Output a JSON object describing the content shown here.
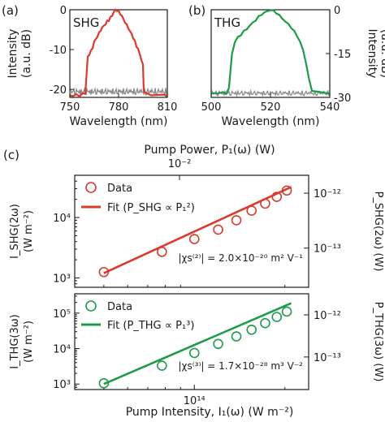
{
  "labels": {
    "panel_a": "(a)",
    "panel_b": "(b)",
    "panel_c": "(c)",
    "ylabel_left_top_1": "Intensity",
    "ylabel_left_top_2": "(a.u. dB)",
    "ylabel_right_top_1": "Intensity",
    "ylabel_right_top_2": "(a.u. dB)",
    "xlabel_a": "Wavelength (nm)",
    "xlabel_b": "Wavelength (nm)",
    "top_axis_title": "Pump Power, P₁(ω) (W)",
    "top_axis_tick": "10⁻²",
    "bottom_axis_title": "Pump Intensity, I₁(ω) (W m⁻²)",
    "ylabel_c1_1": "I_SHG(2ω)",
    "ylabel_c1_2": "(W m⁻²)",
    "ylabel_c2_1": "I_THG(3ω)",
    "ylabel_c2_2": "(W m⁻²)",
    "ylabel_c1_right": "P_SHG(2ω) (W)",
    "ylabel_c2_right": "P_THG(3ω) (W)",
    "legend_data": "Data",
    "legend_fit_shg": "Fit (P_SHG ∝ P₁²)",
    "legend_fit_thg": "Fit (P_THG ∝ P₁³)",
    "annot_shg": "|χs⁽²⁾| = 2.0×10⁻²⁰ m² V⁻¹",
    "annot_thg": "|χs⁽³⁾| = 1.7×10⁻²⁸ m³ V⁻²"
  },
  "colors": {
    "shg": "#d93a2b",
    "thg": "#1e9a4a",
    "noise": "#8a8a8a",
    "axis": "#1a1a1a"
  },
  "chart_data": [
    {
      "type": "line",
      "title": "SHG",
      "xlabel": "Wavelength (nm)",
      "ylabel": "Intensity (a.u. dB)",
      "xlim": [
        750,
        810
      ],
      "ylim": [
        -22,
        0
      ],
      "xticks": [
        "750",
        "780",
        "810"
      ],
      "yticks": [
        "0",
        "-10",
        "-20"
      ],
      "series": [
        {
          "name": "SHG",
          "x": [
            750,
            752,
            754,
            756,
            758,
            759.5,
            760,
            761,
            762,
            763,
            764,
            765,
            766,
            767,
            768,
            769,
            770,
            771,
            772,
            773,
            774,
            775,
            776,
            777,
            778,
            779,
            780,
            781,
            782,
            783,
            784,
            785,
            786,
            787,
            788,
            789,
            790,
            791,
            792,
            793,
            794,
            795,
            795.5,
            796,
            800,
            804,
            808,
            810
          ],
          "y": [
            -21.5,
            -21.5,
            -21.5,
            -21.4,
            -21.2,
            -21,
            -18,
            -12,
            -11,
            -10.5,
            -9.5,
            -8,
            -7.5,
            -6.5,
            -6,
            -5,
            -4.5,
            -4,
            -3.5,
            -3,
            -2.5,
            -2,
            -1.5,
            -0.5,
            -0.2,
            0,
            -0.5,
            -1,
            -1.5,
            -2.5,
            -3,
            -4,
            -4.5,
            -5.5,
            -6,
            -7,
            -8,
            -9,
            -10,
            -11,
            -12.5,
            -14,
            -20,
            -21,
            -21.3,
            -21.4,
            -21.5,
            -21.5
          ]
        }
      ]
    },
    {
      "type": "line",
      "title": "THG",
      "xlabel": "Wavelength (nm)",
      "ylabel": "Intensity (a.u. dB)",
      "xlim": [
        500,
        540
      ],
      "ylim": [
        -30,
        0
      ],
      "xticks": [
        "500",
        "520",
        "540"
      ],
      "yticks": [
        "0",
        "-15",
        "-30"
      ],
      "series": [
        {
          "name": "THG",
          "x": [
            500,
            502,
            504,
            505,
            506,
            507,
            508,
            509,
            510,
            511,
            512,
            513,
            514,
            515,
            516,
            517,
            518,
            519,
            520,
            521,
            522,
            523,
            524,
            525,
            526,
            527,
            528,
            529,
            530,
            531,
            532,
            533,
            534,
            536,
            538,
            540
          ],
          "y": [
            -28.5,
            -28.5,
            -28.5,
            -28.5,
            -27,
            -15,
            -11,
            -9.5,
            -8.5,
            -7.5,
            -6.5,
            -5.5,
            -4.5,
            -3.5,
            -2.5,
            -1.5,
            -1,
            -0.5,
            0,
            -0.5,
            -1,
            -2,
            -3,
            -4,
            -5,
            -6,
            -7.5,
            -9,
            -11,
            -14,
            -18,
            -24,
            -27.5,
            -28.2,
            -28.4,
            -28.5
          ]
        }
      ]
    },
    {
      "type": "scatter",
      "title": "",
      "xlabel": "Pump Intensity, I₁(ω) (W m⁻²)",
      "ylabel": "I_SHG(2ω) (W m⁻²)",
      "xscale": "log",
      "yscale": "log",
      "xlim": [
        40000000000000.0,
        240000000000000.0
      ],
      "ylim": [
        700,
        50000
      ],
      "yticks": [
        "10³",
        "10⁴"
      ],
      "right_yticks": [
        "10⁻¹³",
        "10⁻¹²"
      ],
      "series": [
        {
          "name": "Data",
          "x": [
            50000000000000.0,
            78000000000000.0,
            100000000000000.0,
            120000000000000.0,
            138000000000000.0,
            155000000000000.0,
            172000000000000.0,
            188000000000000.0,
            203000000000000.0
          ],
          "y": [
            1250,
            2700,
            4400,
            6300,
            9000,
            13000,
            17000,
            22000,
            28000
          ]
        },
        {
          "name": "Fit (P_SHG ∝ P₁²)",
          "x": [
            50000000000000.0,
            210000000000000.0
          ],
          "y": [
            1200,
            32000
          ]
        }
      ]
    },
    {
      "type": "scatter",
      "title": "",
      "xlabel": "Pump Intensity, I₁(ω) (W m⁻²)",
      "ylabel": "I_THG(3ω) (W m⁻²)",
      "xscale": "log",
      "yscale": "log",
      "xlim": [
        40000000000000.0,
        240000000000000.0
      ],
      "ylim": [
        700,
        350000
      ],
      "xticks": [
        "10¹⁴"
      ],
      "yticks": [
        "10³",
        "10⁴",
        "10⁵"
      ],
      "right_yticks": [
        "10⁻¹³",
        "10⁻¹²"
      ],
      "series": [
        {
          "name": "Data",
          "x": [
            50000000000000.0,
            78000000000000.0,
            100000000000000.0,
            120000000000000.0,
            138000000000000.0,
            155000000000000.0,
            172000000000000.0,
            188000000000000.0,
            203000000000000.0
          ],
          "y": [
            1050,
            3300,
            7500,
            13500,
            22000,
            34000,
            52000,
            78000,
            110000
          ]
        },
        {
          "name": "Fit (P_THG ∝ P₁³)",
          "x": [
            50000000000000.0,
            210000000000000.0
          ],
          "y": [
            1000,
            190000
          ]
        }
      ]
    }
  ]
}
